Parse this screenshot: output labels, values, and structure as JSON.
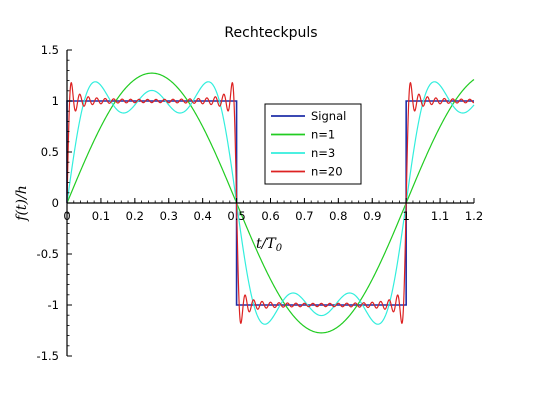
{
  "chart_data": {
    "type": "line",
    "title": "Rechteckpuls",
    "xlabel": "t/T",
    "xlabel_sub": "0",
    "ylabel": "f(t)/h",
    "xlim": [
      0,
      1.2
    ],
    "ylim": [
      -1.5,
      1.5
    ],
    "x_ticks": [
      "0",
      "0.1",
      "0.2",
      "0.3",
      "0.4",
      "0.5",
      "0.6",
      "0.7",
      "0.8",
      "0.9",
      "1",
      "1.1",
      "1.2"
    ],
    "y_ticks": [
      "1.5",
      "1",
      "0.5",
      "0",
      "-0.5",
      "-1",
      "-1.5"
    ],
    "y_tick_values": [
      1.5,
      1,
      0.5,
      0,
      -0.5,
      -1,
      -1.5
    ],
    "x_tick_values": [
      0,
      0.1,
      0.2,
      0.3,
      0.4,
      0.5,
      0.6,
      0.7,
      0.8,
      0.9,
      1,
      1.1,
      1.2
    ],
    "legend_position": "upper-center",
    "grid": false,
    "series": [
      {
        "name": "Signal",
        "color": "#1f2fa8",
        "kind": "square",
        "x": [
          0,
          0,
          0.5,
          0.5,
          1.0,
          1.0,
          1.2
        ],
        "y": [
          0,
          1,
          1,
          -1,
          -1,
          1,
          1
        ]
      },
      {
        "name": "n=1",
        "color": "#22cc22",
        "harmonics": 1
      },
      {
        "name": "n=3",
        "color": "#33eedd",
        "harmonics": 3
      },
      {
        "name": "n=20",
        "color": "#dd2222",
        "harmonics": 20
      }
    ]
  }
}
